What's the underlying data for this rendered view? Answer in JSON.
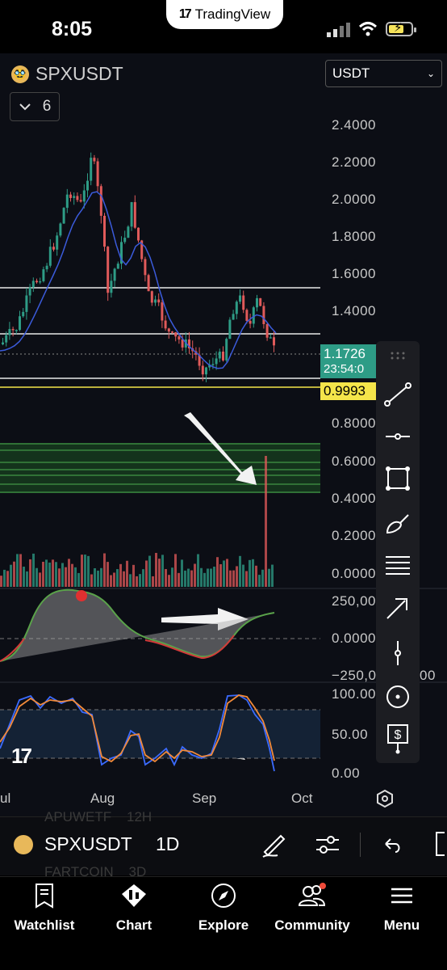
{
  "status_bar": {
    "time": "8:05",
    "app_banner": "TradingView",
    "app_banner_logo": "17"
  },
  "header": {
    "symbol": "SPXUSDT",
    "currency": "USDT",
    "indicator_count": "6"
  },
  "price_axis": [
    "2.4000",
    "2.2000",
    "2.0000",
    "1.8000",
    "1.6000",
    "1.4000",
    "0.8000",
    "0.6000",
    "0.4000",
    "0.2000",
    "0.0000"
  ],
  "current_price": {
    "price": "1.1726",
    "countdown": "23:54:0"
  },
  "level_price": "0.9993",
  "oscillator_axis": [
    "250,00",
    "0.0000",
    "−250,0",
    "00"
  ],
  "stochastic_axis": [
    "100.00",
    "50.00",
    "0.00"
  ],
  "x_axis": [
    "ul",
    "Aug",
    "Sep",
    "Oct"
  ],
  "watermark_logo": "17",
  "bottom_bar": {
    "symbol": "SPXUSDT",
    "interval": "1D",
    "ghost_rows": [
      {
        "symbol": "APUWETF",
        "interval": "12H"
      },
      {
        "symbol": "FARTCOIN",
        "interval": "3D"
      }
    ]
  },
  "tabs": [
    {
      "label": "Watchlist",
      "icon": "watchlist-icon"
    },
    {
      "label": "Chart",
      "icon": "chart-icon"
    },
    {
      "label": "Explore",
      "icon": "compass-icon"
    },
    {
      "label": "Community",
      "icon": "community-icon"
    },
    {
      "label": "Menu",
      "icon": "menu-icon"
    }
  ],
  "colors": {
    "background": "#0c0e15",
    "bull_candle": "#2e9c86",
    "bear_candle": "#e05a5a",
    "ma_line": "#3b5bdb",
    "level_yellow": "#f5e54a",
    "zone_green": "#1f5a2a"
  },
  "drawing_tools": [
    "trendline-icon",
    "horizontal-ray-icon",
    "rectangle-icon",
    "brush-icon",
    "fib-icon",
    "arrow-icon",
    "vertical-line-icon",
    "circle-icon",
    "price-label-icon"
  ]
}
